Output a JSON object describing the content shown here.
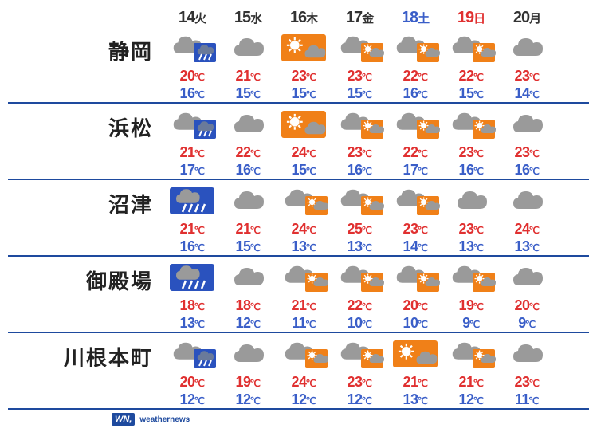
{
  "colors": {
    "weekday": "#333333",
    "saturday": "#3a5ec8",
    "sunday": "#e03030",
    "high": "#e03030",
    "low": "#3a5ec8",
    "divider": "#1e4a9e",
    "cloud": "#9a9a9a",
    "cloud_stroke": "#888888",
    "sun": "#f08018",
    "sun_bg": "#9a9a9a",
    "rain_bg": "#2a52be",
    "rain_drop": "#ffffff",
    "moon": "#f5d040"
  },
  "days": [
    {
      "num": "14",
      "wd": "火",
      "type": "weekday"
    },
    {
      "num": "15",
      "wd": "水",
      "type": "weekday"
    },
    {
      "num": "16",
      "wd": "木",
      "type": "weekday"
    },
    {
      "num": "17",
      "wd": "金",
      "type": "weekday"
    },
    {
      "num": "18",
      "wd": "土",
      "type": "saturday"
    },
    {
      "num": "19",
      "wd": "日",
      "type": "sunday"
    },
    {
      "num": "20",
      "wd": "月",
      "type": "weekday"
    }
  ],
  "cities": [
    {
      "name": "静岡",
      "icons": [
        "cloud_rain",
        "cloud",
        "sun_cloud",
        "cloud_sun",
        "cloud_sun",
        "cloud_sun",
        "cloud"
      ],
      "highs": [
        20,
        21,
        23,
        23,
        22,
        22,
        23
      ],
      "lows": [
        16,
        15,
        15,
        15,
        16,
        15,
        14
      ]
    },
    {
      "name": "浜松",
      "icons": [
        "cloud_rain",
        "cloud",
        "sun_cloud",
        "cloud_sun",
        "cloud_sun",
        "cloud_sun",
        "cloud"
      ],
      "highs": [
        21,
        22,
        24,
        23,
        22,
        23,
        23
      ],
      "lows": [
        17,
        16,
        15,
        16,
        17,
        16,
        16
      ]
    },
    {
      "name": "沼津",
      "icons": [
        "cloud_heavyrain",
        "cloud",
        "cloud_sun",
        "cloud_sun",
        "cloud_sun",
        "cloud",
        "cloud"
      ],
      "highs": [
        21,
        21,
        24,
        25,
        23,
        23,
        24
      ],
      "lows": [
        16,
        15,
        13,
        13,
        14,
        13,
        13
      ]
    },
    {
      "name": "御殿場",
      "icons": [
        "cloud_heavyrain",
        "cloud",
        "cloud_sun",
        "cloud_sun",
        "cloud_sun",
        "cloud_sun",
        "cloud"
      ],
      "highs": [
        18,
        18,
        21,
        22,
        20,
        19,
        20
      ],
      "lows": [
        13,
        12,
        11,
        10,
        10,
        9,
        9
      ]
    },
    {
      "name": "川根本町",
      "icons": [
        "cloud_rain",
        "cloud",
        "cloud_sun",
        "cloud_sun",
        "sun_cloud",
        "cloud_sun",
        "cloud"
      ],
      "highs": [
        20,
        19,
        24,
        23,
        21,
        21,
        23
      ],
      "lows": [
        12,
        12,
        12,
        12,
        13,
        12,
        11
      ]
    }
  ],
  "footer": {
    "logo": "WN,",
    "brand": "weathernews"
  }
}
